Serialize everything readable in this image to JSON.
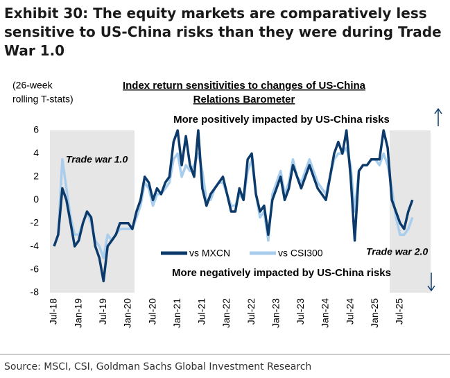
{
  "chart_data": {
    "type": "line",
    "title_lines": [
      "Exhibit 30: The equity markets are comparatively less",
      "sensitive to US-China risks than they were during Trade",
      "War 1.0"
    ],
    "subtitle_lines": [
      "Index return sensitivities to changes of US-China",
      "Relations Barometer"
    ],
    "y_label_lines": [
      "(26-week",
      "rolling T-stats)"
    ],
    "annotations": {
      "top": "More positively impacted by US-China risks",
      "bottom": "More negatively impacted by US-China risks",
      "trade_war_1": "Trade war 1.0",
      "trade_war_2": "Trade war 2.0"
    },
    "source": "Source: MSCI, CSI, Goldman Sachs Global Investment Research",
    "categories": [
      "Jul-18",
      null,
      null,
      null,
      null,
      null,
      "Jan-19",
      null,
      null,
      null,
      null,
      null,
      "Jul-19",
      null,
      null,
      null,
      null,
      null,
      "Jan-20",
      null,
      null,
      null,
      null,
      null,
      "Jul-20",
      null,
      null,
      null,
      null,
      null,
      "Jan-21",
      null,
      null,
      null,
      null,
      null,
      "Jul-21",
      null,
      null,
      null,
      null,
      null,
      "Jan-22",
      null,
      null,
      null,
      null,
      null,
      "Jul-22",
      null,
      null,
      null,
      null,
      null,
      "Jan-23",
      null,
      null,
      null,
      null,
      null,
      "Jul-23",
      null,
      null,
      null,
      null,
      null,
      "Jan-24",
      null,
      null,
      null,
      null,
      null,
      "Jul-24",
      null,
      null,
      null,
      null,
      null,
      "Jan-25",
      null,
      null,
      null,
      null,
      null,
      "Jul-25",
      null,
      null,
      null
    ],
    "series": [
      {
        "name": "vs MXCN",
        "color": "#0b3a6b",
        "values": [
          -4,
          -3,
          1,
          0,
          -2,
          -4,
          -3.5,
          -2,
          -1,
          -1.5,
          -4,
          -5,
          -7,
          -4,
          -3.5,
          -3,
          -2,
          -2,
          -2,
          -2.5,
          -1,
          0,
          2,
          1.5,
          0,
          1,
          0.5,
          1.5,
          2,
          5,
          6,
          3,
          5.5,
          3,
          2,
          6,
          1,
          -0.5,
          0.5,
          1,
          1.5,
          2,
          0.5,
          -1,
          -1,
          1,
          0,
          3.5,
          4,
          0.5,
          -1,
          -0.5,
          -3,
          0,
          1,
          2,
          0,
          1,
          3,
          2,
          1,
          2,
          3,
          2,
          1,
          0.5,
          0,
          2,
          4,
          5,
          4,
          6,
          2,
          -3.5,
          2.5,
          3,
          3,
          3.5,
          3.5,
          3.5,
          6,
          4.5,
          0,
          -1,
          -2,
          -2.5,
          -1,
          0
        ]
      },
      {
        "name": "vs CSI300",
        "color": "#a9cdec",
        "values": [
          -4,
          -3,
          3.5,
          1,
          -1.5,
          -3,
          -3,
          -2,
          -1,
          -2,
          -3.5,
          -4,
          -5,
          -3,
          -3.5,
          -3,
          -2.5,
          -2.5,
          -2.5,
          -2.5,
          -1.5,
          -0.5,
          1.5,
          1,
          -0.5,
          0.5,
          0.5,
          1,
          1.5,
          3.5,
          4,
          2,
          3,
          2.5,
          3,
          4,
          2.5,
          0,
          0,
          1,
          1.5,
          1.5,
          0.5,
          -0.5,
          -0.5,
          0.5,
          0,
          2.5,
          3.5,
          0.5,
          -1.5,
          -1,
          -3.5,
          0.5,
          1.5,
          2.5,
          0.5,
          1.5,
          3.5,
          2,
          1.5,
          2.5,
          3.5,
          2.5,
          1.5,
          1,
          0.5,
          2,
          3.5,
          4,
          4,
          4.5,
          3,
          -1,
          2.5,
          3,
          3,
          3.5,
          3.5,
          3,
          4,
          3,
          1,
          -1.5,
          -3,
          -3,
          -2.5,
          -1.5
        ]
      }
    ],
    "ylim": [
      -8,
      6
    ],
    "yticks": [
      -8,
      -6,
      -4,
      -2,
      0,
      2,
      4,
      6
    ]
  }
}
